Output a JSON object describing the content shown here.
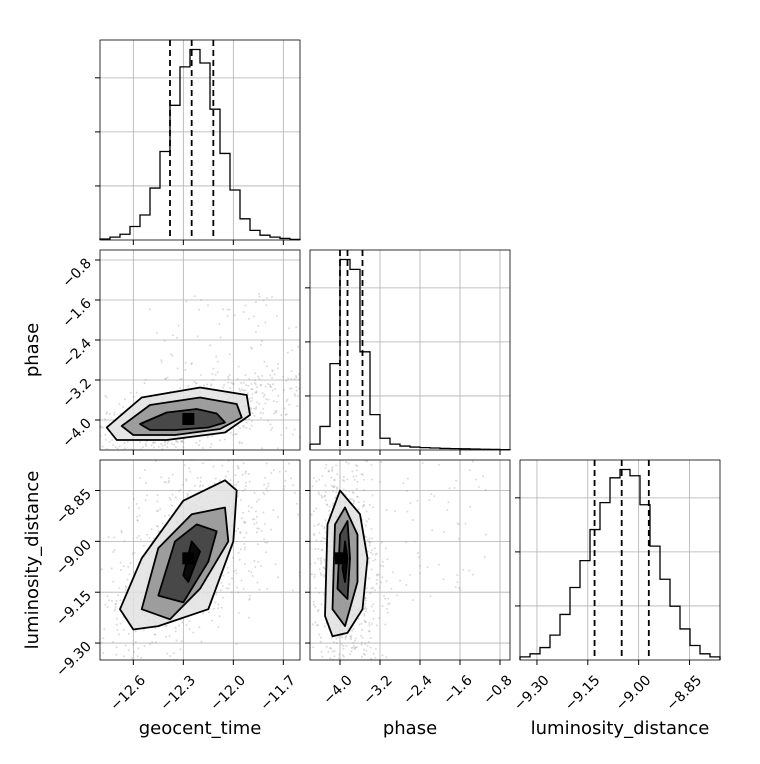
{
  "chart_data": {
    "type": "corner",
    "parameters": [
      "geocent_time",
      "phase",
      "luminosity_distance"
    ],
    "axes": {
      "geocent_time": {
        "label": "geocent_time",
        "range": [
          -12.8,
          -11.6
        ],
        "ticks": [
          -12.6,
          -12.3,
          -12.0,
          -11.7
        ],
        "tick_labels": [
          "−12.6",
          "−12.3",
          "−12.0",
          "−11.7"
        ]
      },
      "phase": {
        "label": "phase",
        "range": [
          -4.6,
          -0.6
        ],
        "ticks": [
          -4.0,
          -3.2,
          -2.4,
          -1.6,
          -0.8
        ],
        "tick_labels": [
          "−4.0",
          "−3.2",
          "−2.4",
          "−1.6",
          "−0.8"
        ]
      },
      "luminosity_distance": {
        "label": "luminosity_distance",
        "range": [
          -9.35,
          -8.76
        ],
        "ticks": [
          -9.3,
          -9.15,
          -9.0,
          -8.85
        ],
        "tick_labels": [
          "−9.30",
          "−9.15",
          "−9.00",
          "−8.85"
        ]
      }
    },
    "grid": true,
    "marginals": [
      {
        "parameter": "geocent_time",
        "bin_edges": [
          -12.8,
          -12.74,
          -12.68,
          -12.62,
          -12.56,
          -12.5,
          -12.44,
          -12.38,
          -12.32,
          -12.26,
          -12.2,
          -12.14,
          -12.08,
          -12.02,
          -11.96,
          -11.9,
          -11.84,
          -11.78,
          -11.72,
          -11.66,
          -11.6
        ],
        "counts": [
          0.5,
          1.5,
          3,
          7,
          13,
          27,
          46,
          70,
          90,
          99,
          92,
          68,
          45,
          26,
          11,
          5,
          2.5,
          1.5,
          0.8,
          0.3
        ],
        "quantiles": [
          -12.38,
          -12.25,
          -12.12
        ]
      },
      {
        "parameter": "phase",
        "bin_edges": [
          -4.6,
          -4.4,
          -4.2,
          -4.0,
          -3.8,
          -3.6,
          -3.4,
          -3.2,
          -3.0,
          -2.8,
          -2.6,
          -2.4,
          -2.2,
          -2.0,
          -1.8,
          -1.6,
          -1.4,
          -1.2,
          -1.0,
          -0.8,
          -0.6
        ],
        "counts": [
          3,
          12,
          44,
          97,
          92,
          50,
          18,
          6,
          3,
          2,
          1.5,
          1.2,
          1,
          0.8,
          0.7,
          0.6,
          0.5,
          0.4,
          0.3,
          0.2
        ],
        "quantiles": [
          -4.0,
          -3.85,
          -3.55
        ]
      },
      {
        "parameter": "luminosity_distance",
        "bin_edges": [
          -9.35,
          -9.3205,
          -9.291,
          -9.2615,
          -9.232,
          -9.2025,
          -9.173,
          -9.1435,
          -9.114,
          -9.0845,
          -9.055,
          -9.0255,
          -8.996,
          -8.9665,
          -8.937,
          -8.9075,
          -8.878,
          -8.8485,
          -8.819,
          -8.7895,
          -8.76
        ],
        "counts": [
          1.5,
          3,
          6,
          12,
          22,
          35,
          48,
          63,
          76,
          88,
          92,
          89,
          75,
          55,
          39,
          26,
          15,
          7,
          3,
          1.5
        ],
        "quantiles": [
          -9.13,
          -9.05,
          -8.97
        ]
      }
    ],
    "pairs": [
      {
        "x": "geocent_time",
        "y": "phase",
        "density_peak": [
          -12.27,
          -3.98
        ],
        "contours": [
          [
            [
              -12.56,
              -4.08
            ],
            [
              -12.4,
              -3.85
            ],
            [
              -12.22,
              -3.78
            ],
            [
              -12.1,
              -3.87
            ],
            [
              -12.05,
              -4.05
            ],
            [
              -12.15,
              -4.15
            ],
            [
              -12.35,
              -4.2
            ],
            [
              -12.5,
              -4.2
            ]
          ],
          [
            [
              -12.67,
              -4.12
            ],
            [
              -12.5,
              -3.7
            ],
            [
              -12.2,
              -3.55
            ],
            [
              -11.98,
              -3.68
            ],
            [
              -11.95,
              -3.95
            ],
            [
              -12.08,
              -4.18
            ],
            [
              -12.35,
              -4.3
            ],
            [
              -12.6,
              -4.3
            ]
          ],
          [
            [
              -12.76,
              -4.15
            ],
            [
              -12.55,
              -3.55
            ],
            [
              -12.2,
              -3.35
            ],
            [
              -11.92,
              -3.5
            ],
            [
              -11.9,
              -3.9
            ],
            [
              -12.05,
              -4.25
            ],
            [
              -12.4,
              -4.4
            ],
            [
              -12.7,
              -4.4
            ]
          ]
        ]
      },
      {
        "x": "geocent_time",
        "y": "luminosity_distance",
        "density_peak": [
          -12.27,
          -9.05
        ],
        "contours": [
          [
            [
              -12.3,
              -9.1
            ],
            [
              -12.25,
              -9.0
            ],
            [
              -12.2,
              -9.03
            ],
            [
              -12.27,
              -9.12
            ]
          ],
          [
            [
              -12.45,
              -9.16
            ],
            [
              -12.35,
              -9.0
            ],
            [
              -12.22,
              -8.95
            ],
            [
              -12.1,
              -8.97
            ],
            [
              -12.15,
              -9.06
            ],
            [
              -12.3,
              -9.18
            ]
          ],
          [
            [
              -12.55,
              -9.2
            ],
            [
              -12.45,
              -9.02
            ],
            [
              -12.25,
              -8.92
            ],
            [
              -12.05,
              -8.9
            ],
            [
              -12.03,
              -9.0
            ],
            [
              -12.2,
              -9.14
            ],
            [
              -12.38,
              -9.23
            ]
          ],
          [
            [
              -12.68,
              -9.2
            ],
            [
              -12.55,
              -9.05
            ],
            [
              -12.3,
              -8.88
            ],
            [
              -12.05,
              -8.82
            ],
            [
              -11.98,
              -8.85
            ],
            [
              -12.0,
              -9.0
            ],
            [
              -12.15,
              -9.2
            ],
            [
              -12.45,
              -9.25
            ],
            [
              -12.6,
              -9.26
            ]
          ]
        ]
      },
      {
        "x": "phase",
        "y": "luminosity_distance",
        "density_peak": [
          -3.98,
          -9.05
        ],
        "contours": [
          [
            [
              -3.95,
              -9.08
            ],
            [
              -3.9,
              -9.0
            ],
            [
              -3.85,
              -9.05
            ],
            [
              -3.9,
              -9.12
            ]
          ],
          [
            [
              -4.05,
              -9.14
            ],
            [
              -4.0,
              -8.98
            ],
            [
              -3.85,
              -8.94
            ],
            [
              -3.8,
              -9.05
            ],
            [
              -3.85,
              -9.17
            ]
          ],
          [
            [
              -4.15,
              -9.2
            ],
            [
              -4.1,
              -8.95
            ],
            [
              -3.9,
              -8.9
            ],
            [
              -3.65,
              -8.98
            ],
            [
              -3.65,
              -9.12
            ],
            [
              -3.9,
              -9.25
            ]
          ],
          [
            [
              -4.3,
              -9.22
            ],
            [
              -4.25,
              -8.95
            ],
            [
              -4.0,
              -8.85
            ],
            [
              -3.6,
              -8.92
            ],
            [
              -3.45,
              -9.05
            ],
            [
              -3.55,
              -9.2
            ],
            [
              -3.85,
              -9.27
            ],
            [
              -4.15,
              -9.28
            ]
          ]
        ]
      }
    ]
  }
}
